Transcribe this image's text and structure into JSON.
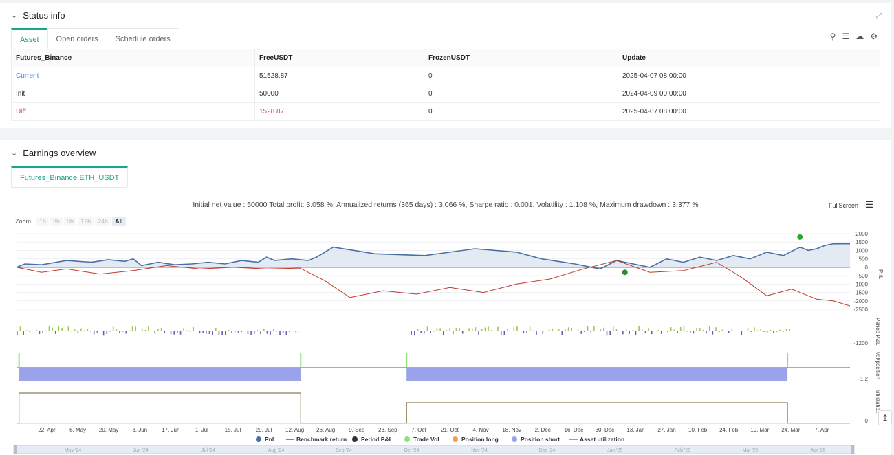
{
  "status_panel": {
    "title": "Status info",
    "tabs": [
      {
        "label": "Asset"
      },
      {
        "label": "Open orders"
      },
      {
        "label": "Schedule orders"
      }
    ],
    "table": {
      "headers": [
        "Futures_Binance",
        "FreeUSDT",
        "FrozenUSDT",
        "Update"
      ],
      "rows": [
        {
          "label": "Current",
          "free": "51528.87",
          "frozen": "0",
          "update": "2025-04-07 08:00:00"
        },
        {
          "label": "Init",
          "free": "50000",
          "frozen": "0",
          "update": "2024-04-09 00:00:00"
        },
        {
          "label": "Diff",
          "free": "1528.87",
          "frozen": "0",
          "update": "2025-04-07 08:00:00"
        }
      ]
    }
  },
  "earnings_panel": {
    "title": "Earnings overview",
    "tab": "Futures_Binance.ETH_USDT",
    "stats": "Initial net value : 50000 Total profit: 3.058 %, Annualized returns (365 days) : 3.066 %, Sharpe ratio : 0.001, Volatility : 1.108 %, Maximum drawdown : 3.377 %",
    "fullscreen": "FullScreen",
    "zoom_label": "Zoom",
    "zoom_options": [
      "1h",
      "3h",
      "8h",
      "12h",
      "24h",
      "All"
    ]
  },
  "colors": {
    "accent": "#13a88a",
    "current": "#3a8ee6",
    "diff": "#e64545",
    "pnl": "#4a6fa5",
    "benchmark": "#c0392b",
    "trade_vol": "#8ee07e",
    "position_short": "#9aa3ea",
    "utilization": "#8a7d4f"
  },
  "chart_data": {
    "type": "line",
    "x_ticks": [
      "22. Apr",
      "6. May",
      "20. May",
      "3. Jun",
      "17. Jun",
      "1. Jul",
      "15. Jul",
      "29. Jul",
      "12. Aug",
      "26. Aug",
      "9. Sep",
      "23. Sep",
      "7. Oct",
      "21. Oct",
      "4. Nov",
      "18. Nov",
      "2. Dec",
      "16. Dec",
      "30. Dec",
      "13. Jan",
      "27. Jan",
      "10. Feb",
      "24. Feb",
      "10. Mar",
      "24. Mar",
      "7. Apr"
    ],
    "navigator_ticks": [
      "May '24",
      "Jun '24",
      "Jul '24",
      "Aug '24",
      "Sep '24",
      "Oct '24",
      "Nov '24",
      "Dec '24",
      "Jan '25",
      "Feb '25",
      "Mar '25",
      "Apr '25"
    ],
    "pnl_axis": {
      "ticks": [
        "2000",
        "1500",
        "1000",
        "500",
        "0",
        "-500",
        "-1000",
        "-1500",
        "-2000",
        "-2500"
      ],
      "label": "PnL",
      "ylim": [
        -2500,
        2000
      ]
    },
    "period_axis": {
      "ticks": [
        "-1200"
      ],
      "label": "Period P&L"
    },
    "vol_axis": {
      "ticks": [
        "-1.2"
      ],
      "label": "vol/position"
    },
    "util_axis": {
      "ticks": [
        "0"
      ],
      "label": "utilizatio..."
    },
    "legend": [
      "PnL",
      "Benchmark return",
      "Period P&L",
      "Trade Vol",
      "Position long",
      "Position short",
      "Asset utilization"
    ],
    "series": [
      {
        "name": "PnL",
        "x": [
          0,
          0.01,
          0.03,
          0.06,
          0.09,
          0.11,
          0.13,
          0.14,
          0.15,
          0.17,
          0.19,
          0.21,
          0.23,
          0.25,
          0.27,
          0.29,
          0.3,
          0.31,
          0.33,
          0.35,
          0.36,
          0.37,
          0.38,
          0.43,
          0.49,
          0.55,
          0.6,
          0.63,
          0.67,
          0.7,
          0.72,
          0.74,
          0.76,
          0.78,
          0.8,
          0.82,
          0.84,
          0.86,
          0.88,
          0.9,
          0.92,
          0.94,
          0.95,
          0.96,
          0.97,
          0.98,
          1.0
        ],
        "values": [
          0,
          200,
          150,
          400,
          300,
          450,
          350,
          500,
          100,
          300,
          150,
          200,
          300,
          200,
          400,
          300,
          600,
          400,
          500,
          400,
          600,
          900,
          1200,
          800,
          700,
          1100,
          900,
          500,
          200,
          -100,
          400,
          200,
          0,
          500,
          300,
          600,
          400,
          700,
          500,
          900,
          700,
          1200,
          1000,
          1100,
          1300,
          1400,
          1400
        ]
      },
      {
        "name": "Benchmark return",
        "x": [
          0,
          0.03,
          0.06,
          0.1,
          0.14,
          0.18,
          0.22,
          0.26,
          0.3,
          0.34,
          0.37,
          0.4,
          0.44,
          0.48,
          0.52,
          0.56,
          0.6,
          0.64,
          0.68,
          0.72,
          0.76,
          0.8,
          0.84,
          0.87,
          0.9,
          0.93,
          0.96,
          0.98,
          1.0
        ],
        "values": [
          0,
          -300,
          -100,
          -400,
          -200,
          100,
          -100,
          0,
          -100,
          -50,
          -800,
          -1800,
          -1400,
          -1600,
          -1200,
          -1500,
          -1000,
          -700,
          -100,
          400,
          -300,
          -200,
          300,
          -600,
          -1700,
          -1300,
          -1900,
          -2000,
          -2300
        ]
      }
    ],
    "markers": [
      {
        "x": 0.73,
        "value": -300,
        "color": "#2e8b2e"
      },
      {
        "x": 0.94,
        "value": 1800,
        "color": "#2aa82a"
      }
    ]
  }
}
